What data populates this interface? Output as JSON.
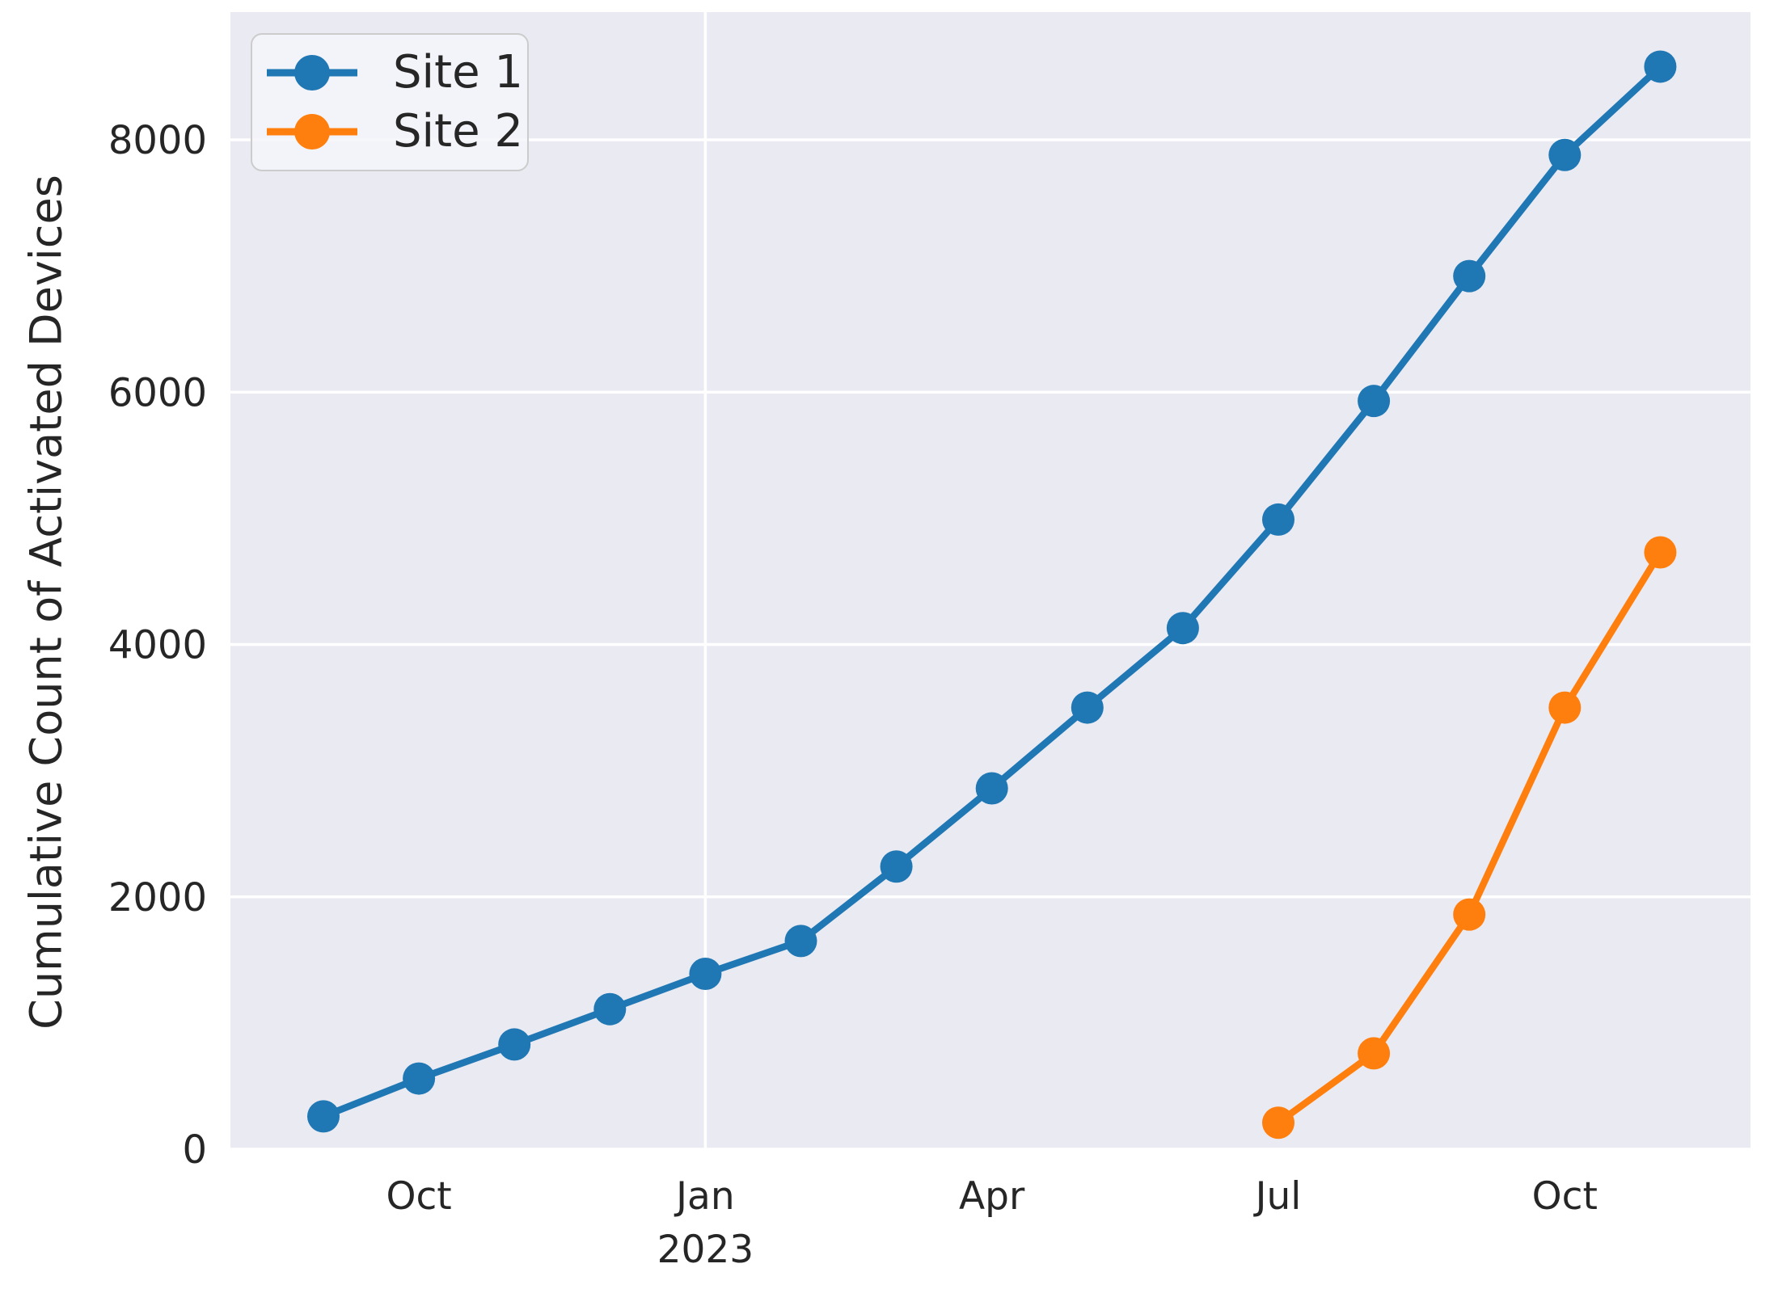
{
  "figure": {
    "background": "#ffffff",
    "plot_background": "#eaeaf2",
    "grid_color": "#ffffff",
    "text_color": "#262626"
  },
  "legend": {
    "position": "upper left"
  },
  "chart_data": {
    "type": "line",
    "title": "",
    "xlabel": "",
    "ylabel": "Cumulative Count of Activated Devices",
    "ylim": [
      0,
      9000
    ],
    "grid": true,
    "legend_position": "upper left",
    "marker": "o",
    "months": [
      "2022-09",
      "2022-10",
      "2022-11",
      "2022-12",
      "2023-01",
      "2023-02",
      "2023-03",
      "2023-04",
      "2023-05",
      "2023-06",
      "2023-07",
      "2023-08",
      "2023-09",
      "2023-10",
      "2023-11"
    ],
    "x_ticks": [
      {
        "label": "Oct",
        "month": "2022-10",
        "gridline": false
      },
      {
        "label": "Jan",
        "sublabel": "2023",
        "month": "2023-01",
        "gridline": true
      },
      {
        "label": "Apr",
        "month": "2023-04",
        "gridline": false
      },
      {
        "label": "Jul",
        "month": "2023-07",
        "gridline": false
      },
      {
        "label": "Oct",
        "month": "2023-10",
        "gridline": false
      }
    ],
    "y_ticks": [
      0,
      2000,
      4000,
      6000,
      8000
    ],
    "series": [
      {
        "name": "Site 1",
        "color": "#1f77b4",
        "x_months": [
          "2022-09",
          "2022-10",
          "2022-11",
          "2022-12",
          "2023-01",
          "2023-02",
          "2023-03",
          "2023-04",
          "2023-05",
          "2023-06",
          "2023-07",
          "2023-08",
          "2023-09",
          "2023-10",
          "2023-11"
        ],
        "values": [
          260,
          560,
          830,
          1110,
          1390,
          1650,
          2240,
          2860,
          3500,
          4130,
          4990,
          5930,
          6920,
          7880,
          8580
        ]
      },
      {
        "name": "Site 2",
        "color": "#ff7f0e",
        "x_months": [
          "2023-07",
          "2023-08",
          "2023-09",
          "2023-10",
          "2023-11"
        ],
        "values": [
          210,
          760,
          1860,
          3500,
          4730
        ]
      }
    ]
  }
}
